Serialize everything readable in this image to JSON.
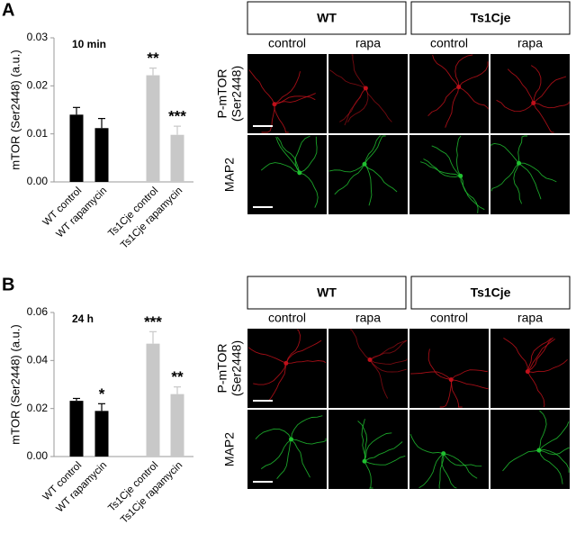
{
  "panel_labels": [
    "A",
    "B"
  ],
  "chart_data": [
    {
      "type": "bar",
      "subtitle": "10 min",
      "y_label": "mTOR (Ser2448) (a.u.)",
      "categories": [
        "WT control",
        "WT rapamycin",
        "Ts1Cje control",
        "Ts1Cje rapamycin"
      ],
      "values": [
        0.014,
        0.0112,
        0.0222,
        0.0098
      ],
      "errors": [
        0.0015,
        0.002,
        0.0015,
        0.0018
      ],
      "colors": [
        "#000000",
        "#000000",
        "#c8c8c8",
        "#c8c8c8"
      ],
      "significance": [
        null,
        null,
        "**",
        "***"
      ],
      "significance_colors": [
        null,
        null,
        "#000000",
        "#a0a0a0"
      ],
      "ylim": [
        0,
        0.03
      ],
      "yticks": [
        {
          "value": 0,
          "label": "0.00"
        },
        {
          "value": 0.01,
          "label": "0.01"
        },
        {
          "value": 0.02,
          "label": "0.02"
        },
        {
          "value": 0.03,
          "label": "0.03"
        }
      ]
    },
    {
      "type": "bar",
      "subtitle": "24 h",
      "y_label": "mTOR (Ser2448) (a.u.)",
      "categories": [
        "WT control",
        "WT rapamycin",
        "Ts1Cje control",
        "Ts1Cje rapamycin"
      ],
      "values": [
        0.0232,
        0.019,
        0.047,
        0.026
      ],
      "errors": [
        0.001,
        0.003,
        0.005,
        0.003
      ],
      "colors": [
        "#000000",
        "#000000",
        "#c8c8c8",
        "#c8c8c8"
      ],
      "significance": [
        null,
        "*",
        "***",
        "**"
      ],
      "significance_colors": [
        null,
        "#000000",
        "#000000",
        "#a0a0a0"
      ],
      "ylim": [
        0,
        0.06
      ],
      "yticks": [
        {
          "value": 0,
          "label": "0.00"
        },
        {
          "value": 0.02,
          "label": "0.02"
        },
        {
          "value": 0.04,
          "label": "0.04"
        },
        {
          "value": 0.06,
          "label": "0.06"
        }
      ]
    }
  ],
  "image_panels": [
    {
      "groups": [
        "WT",
        "Ts1Cje"
      ],
      "columns": [
        "control",
        "rapa",
        "control",
        "rapa"
      ],
      "rows": [
        [
          "P-mTOR",
          "(Ser2448)"
        ],
        [
          "MAP2"
        ]
      ]
    },
    {
      "groups": [
        "WT",
        "Ts1Cje"
      ],
      "columns": [
        "control",
        "rapa",
        "control",
        "rapa"
      ],
      "rows": [
        [
          "P-mTOR",
          "(Ser2448)"
        ],
        [
          "MAP2"
        ]
      ]
    }
  ]
}
